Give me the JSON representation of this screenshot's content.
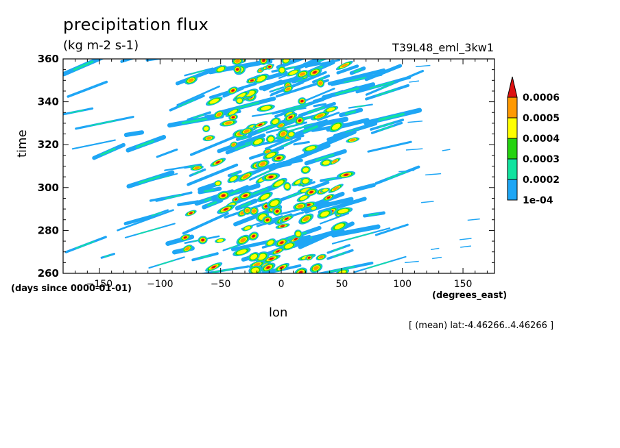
{
  "chart_data": {
    "type": "heatmap",
    "title": "precipitation flux",
    "units": "(kg m-2 s-1)",
    "experiment": "T39L48_eml_3kw1",
    "xlabel": "lon",
    "x_units": "(degrees_east)",
    "ylabel": "time",
    "y_units": "(days since 0000-01-01)",
    "note": "[ (mean) lat:-4.46266..4.46266 ]",
    "xlim": [
      -180,
      176
    ],
    "ylim": [
      260,
      360
    ],
    "x_ticks": [
      -150,
      -100,
      -50,
      0,
      50,
      100,
      150
    ],
    "x_tick_labels": [
      "−150",
      "−100",
      "−50",
      "0",
      "50",
      "100",
      "150"
    ],
    "y_ticks": [
      260,
      280,
      300,
      320,
      340,
      360
    ],
    "y_tick_labels": [
      "260",
      "280",
      "300",
      "320",
      "340",
      "360"
    ],
    "colorbar": {
      "levels": [
        "1e-04",
        "0.0002",
        "0.0003",
        "0.0004",
        "0.0005",
        "0.0006"
      ],
      "colors": [
        "#1ea6f5",
        "#11e39f",
        "#24d30f",
        "#ffff00",
        "#ff9900",
        "#dd1111"
      ]
    },
    "grid": false,
    "legend": "right"
  }
}
